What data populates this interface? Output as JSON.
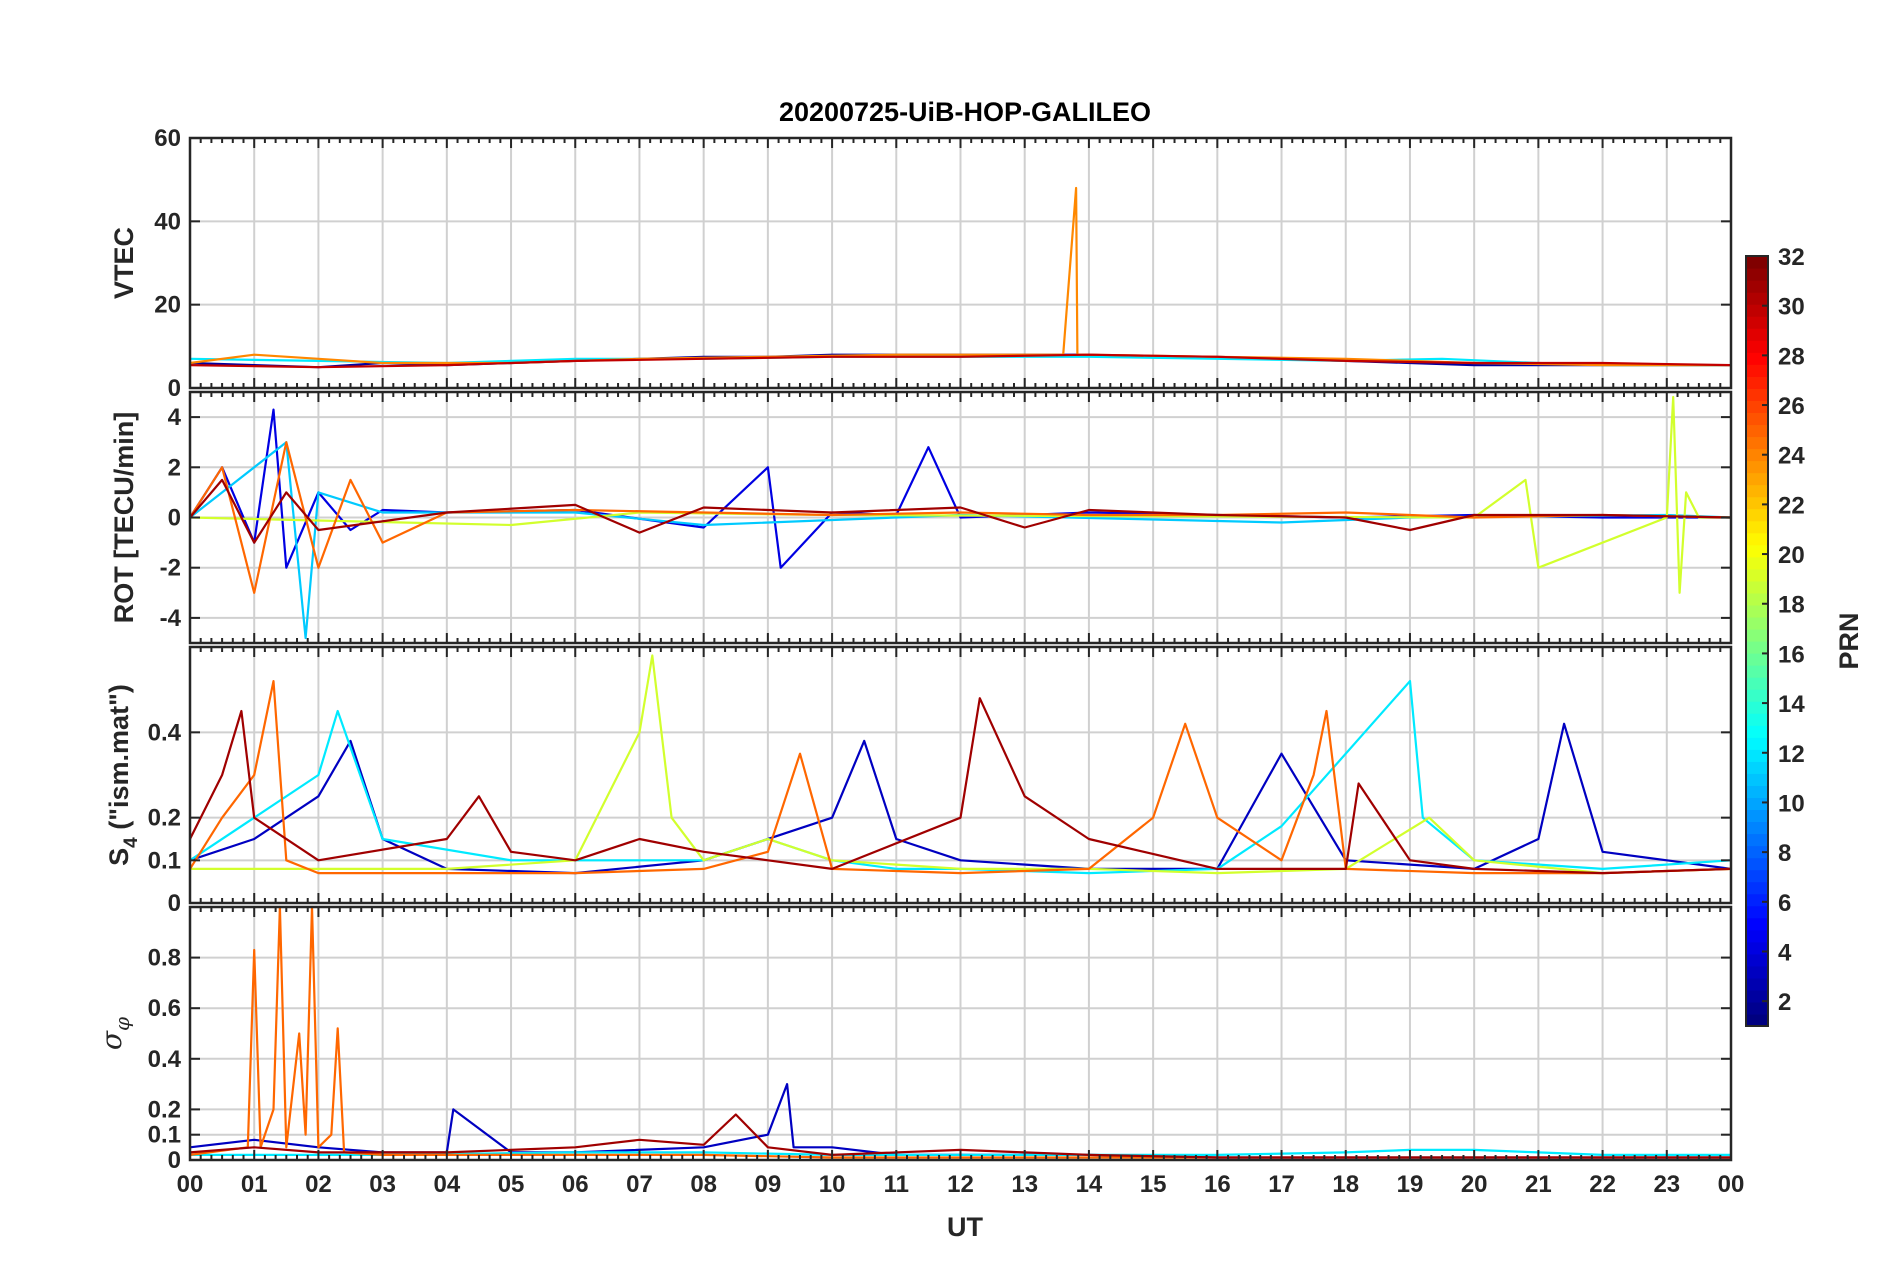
{
  "chart_data": {
    "type": "line",
    "title": "20200725-UiB-HOP-GALILEO",
    "xlabel": "UT",
    "x_ticks": [
      "00",
      "01",
      "02",
      "03",
      "04",
      "05",
      "06",
      "07",
      "08",
      "09",
      "10",
      "11",
      "12",
      "13",
      "14",
      "15",
      "16",
      "17",
      "18",
      "19",
      "20",
      "21",
      "22",
      "23",
      "00"
    ],
    "xlim": [
      0,
      24
    ],
    "grid": true,
    "colorbar": {
      "label": "PRN",
      "colormap": "jet",
      "range": [
        1,
        32
      ],
      "ticks": [
        2,
        4,
        6,
        8,
        10,
        12,
        14,
        16,
        18,
        20,
        22,
        24,
        26,
        28,
        30,
        32
      ]
    },
    "panels": [
      {
        "id": "vtec",
        "ylabel": "VTEC",
        "ylim": [
          0,
          60
        ],
        "yticks": [
          0,
          20,
          40,
          60
        ],
        "series": [
          {
            "prn": 2,
            "x": [
              0,
              1,
              2,
              3,
              4,
              5,
              6,
              7,
              8,
              9,
              10,
              11,
              12,
              13,
              14,
              15,
              16,
              17,
              18,
              19,
              20,
              21,
              22,
              23,
              24
            ],
            "y": [
              6,
              5.5,
              5,
              6,
              5.5,
              6,
              6.5,
              7,
              7.5,
              7.5,
              8,
              8,
              8,
              8,
              8,
              7.5,
              7.5,
              7,
              6.5,
              6,
              5.5,
              5.5,
              5.5,
              5.5,
              5.5
            ]
          },
          {
            "prn": 12,
            "x": [
              0,
              2,
              4,
              6,
              8,
              10,
              12,
              14,
              16,
              18,
              19.5,
              21,
              22,
              24
            ],
            "y": [
              7,
              6.5,
              6,
              7,
              7,
              7.5,
              7.5,
              7.5,
              7,
              6.5,
              7,
              6,
              5.5,
              5.5
            ]
          },
          {
            "prn": 24,
            "x": [
              0,
              1,
              2,
              3,
              5,
              7,
              9,
              11,
              13,
              13.6,
              13.8,
              13.82,
              14,
              16,
              18,
              20,
              22,
              24
            ],
            "y": [
              6,
              8,
              7,
              6,
              6,
              7,
              7.5,
              8,
              8,
              8,
              48,
              8,
              8,
              7.5,
              7,
              6,
              5.5,
              5.5
            ]
          },
          {
            "prn": 30,
            "x": [
              0,
              2,
              4,
              6,
              8,
              10,
              12,
              14,
              16,
              18,
              20,
              22,
              24
            ],
            "y": [
              5.5,
              5,
              5.5,
              6.5,
              7,
              7.5,
              7.5,
              8,
              7.5,
              6.5,
              6,
              6,
              5.5
            ]
          }
        ]
      },
      {
        "id": "rot",
        "ylabel": "ROT [TECU/min]",
        "ylim": [
          -5,
          5
        ],
        "yticks": [
          -4,
          -2,
          0,
          2,
          4
        ],
        "series": [
          {
            "prn": 4,
            "x": [
              0,
              0.5,
              1,
              1.3,
              1.5,
              2,
              2.5,
              3,
              4,
              6,
              8,
              9,
              9.2,
              10,
              11,
              11.5,
              12,
              14,
              16,
              18,
              20,
              22,
              24
            ],
            "y": [
              0,
              2,
              -1,
              4.3,
              -2,
              1,
              -0.5,
              0.3,
              0.2,
              0.3,
              -0.4,
              2,
              -2,
              0.2,
              0.1,
              2.8,
              0,
              0.2,
              0.1,
              0,
              0.1,
              0,
              0
            ]
          },
          {
            "prn": 11,
            "x": [
              0,
              1.5,
              1.8,
              2,
              3,
              6,
              8,
              12,
              17,
              19,
              23,
              24
            ],
            "y": [
              0,
              3,
              -4.8,
              1,
              0.2,
              0.2,
              -0.3,
              0.1,
              -0.2,
              0,
              0.1,
              0
            ]
          },
          {
            "prn": 19,
            "x": [
              0,
              5,
              7,
              10,
              20,
              20.8,
              21,
              23,
              23.1,
              23.2,
              23.3,
              23.5,
              24
            ],
            "y": [
              0,
              -0.3,
              0.2,
              0.1,
              0,
              1.5,
              -2,
              0,
              4.8,
              -3,
              1,
              0,
              0
            ]
          },
          {
            "prn": 25,
            "x": [
              0,
              0.5,
              1,
              1.5,
              2,
              2.5,
              3,
              4,
              6,
              8,
              10,
              12,
              14,
              16,
              18,
              20,
              22,
              24
            ],
            "y": [
              0,
              2,
              -3,
              3,
              -2,
              1.5,
              -1,
              0.2,
              0.3,
              0.2,
              0.1,
              0.2,
              0.1,
              0.1,
              0.2,
              0,
              0.1,
              0
            ]
          },
          {
            "prn": 31,
            "x": [
              0,
              0.5,
              1,
              1.5,
              2,
              4,
              6,
              7,
              8,
              10,
              12,
              13,
              14,
              16,
              18,
              19,
              20,
              22,
              24
            ],
            "y": [
              0,
              1.5,
              -1,
              1,
              -0.5,
              0.2,
              0.5,
              -0.6,
              0.4,
              0.2,
              0.4,
              -0.4,
              0.3,
              0.1,
              0,
              -0.5,
              0.1,
              0.1,
              0
            ]
          }
        ]
      },
      {
        "id": "s4",
        "ylabel": "S4 (\"ism.mat\")",
        "ylabel_main": "S",
        "ylabel_sub": "4",
        "ylabel_rest": " (\"ism.mat\")",
        "ylim": [
          0,
          0.6
        ],
        "yticks": [
          0,
          0.1,
          0.2,
          0.4
        ],
        "series": [
          {
            "prn": 3,
            "x": [
              0,
              1,
              2,
              2.5,
              3,
              4,
              6,
              8,
              10,
              10.5,
              11,
              12,
              14,
              16,
              17,
              18,
              20,
              21,
              21.4,
              22,
              23,
              24
            ],
            "y": [
              0.1,
              0.15,
              0.25,
              0.38,
              0.15,
              0.08,
              0.07,
              0.1,
              0.2,
              0.38,
              0.15,
              0.1,
              0.08,
              0.08,
              0.35,
              0.1,
              0.08,
              0.15,
              0.42,
              0.12,
              0.1,
              0.08
            ]
          },
          {
            "prn": 12,
            "x": [
              0,
              2,
              2.3,
              3,
              5,
              6,
              8,
              9,
              10,
              11,
              12,
              14,
              16,
              17,
              19,
              19.2,
              20,
              22,
              24
            ],
            "y": [
              0.1,
              0.3,
              0.45,
              0.15,
              0.1,
              0.1,
              0.1,
              0.15,
              0.1,
              0.08,
              0.08,
              0.07,
              0.08,
              0.18,
              0.52,
              0.2,
              0.1,
              0.08,
              0.1
            ]
          },
          {
            "prn": 19,
            "x": [
              0,
              4,
              6,
              6.5,
              7,
              7.2,
              7.5,
              8,
              9,
              10,
              12,
              14,
              16,
              18,
              19.3,
              20,
              22,
              24
            ],
            "y": [
              0.08,
              0.08,
              0.1,
              0.25,
              0.4,
              0.58,
              0.2,
              0.1,
              0.15,
              0.1,
              0.08,
              0.08,
              0.07,
              0.08,
              0.2,
              0.1,
              0.07,
              0.08
            ]
          },
          {
            "prn": 25,
            "x": [
              0,
              0.5,
              1,
              1.3,
              1.5,
              2,
              4,
              6,
              8,
              9,
              9.5,
              10,
              12,
              14,
              15,
              15.5,
              16,
              17,
              17.5,
              17.7,
              18,
              20,
              22,
              24
            ],
            "y": [
              0.08,
              0.2,
              0.3,
              0.52,
              0.1,
              0.07,
              0.07,
              0.07,
              0.08,
              0.12,
              0.35,
              0.08,
              0.07,
              0.08,
              0.2,
              0.42,
              0.2,
              0.1,
              0.3,
              0.45,
              0.08,
              0.07,
              0.07,
              0.08
            ]
          },
          {
            "prn": 31,
            "x": [
              0,
              0.5,
              0.8,
              1,
              2,
              4,
              4.5,
              5,
              6,
              7,
              8,
              9,
              10,
              12,
              12.3,
              13,
              14,
              16,
              18,
              18.2,
              19,
              20,
              22,
              24
            ],
            "y": [
              0.15,
              0.3,
              0.45,
              0.2,
              0.1,
              0.15,
              0.25,
              0.12,
              0.1,
              0.15,
              0.12,
              0.1,
              0.08,
              0.2,
              0.48,
              0.25,
              0.15,
              0.08,
              0.08,
              0.28,
              0.1,
              0.08,
              0.07,
              0.08
            ]
          }
        ]
      },
      {
        "id": "sigma",
        "ylabel": "σφ",
        "ylabel_main": "σ",
        "ylabel_sub": "φ",
        "ylim": [
          0,
          1
        ],
        "yticks": [
          0,
          0.1,
          0.2,
          0.4,
          0.6,
          0.8
        ],
        "series": [
          {
            "prn": 3,
            "x": [
              0,
              1,
              2,
              3,
              4,
              4.1,
              5,
              6,
              8,
              9,
              9.3,
              9.4,
              10,
              11,
              12,
              14,
              16,
              18,
              20,
              22,
              24
            ],
            "y": [
              0.05,
              0.08,
              0.05,
              0.03,
              0.03,
              0.2,
              0.03,
              0.03,
              0.05,
              0.1,
              0.3,
              0.05,
              0.05,
              0.02,
              0.02,
              0.02,
              0.01,
              0.01,
              0.01,
              0.01,
              0.01
            ]
          },
          {
            "prn": 12,
            "x": [
              0,
              3,
              6,
              8,
              10,
              12,
              14,
              16,
              18,
              19,
              20,
              21,
              22,
              24
            ],
            "y": [
              0.02,
              0.02,
              0.03,
              0.03,
              0.02,
              0.02,
              0.02,
              0.02,
              0.03,
              0.04,
              0.04,
              0.03,
              0.02,
              0.02
            ]
          },
          {
            "prn": 25,
            "x": [
              0,
              0.9,
              1.0,
              1.1,
              1.3,
              1.4,
              1.5,
              1.7,
              1.8,
              1.9,
              2.0,
              2.2,
              2.3,
              2.4,
              3,
              4,
              5,
              6,
              8,
              10,
              12,
              14,
              16,
              18,
              20,
              22,
              24
            ],
            "y": [
              0.02,
              0.05,
              0.83,
              0.05,
              0.2,
              1.0,
              0.05,
              0.5,
              0.1,
              1.0,
              0.05,
              0.1,
              0.52,
              0.03,
              0.02,
              0.02,
              0.02,
              0.02,
              0.02,
              0.01,
              0.01,
              0.01,
              0.01,
              0.01,
              0.01,
              0.01,
              0.01
            ]
          },
          {
            "prn": 31,
            "x": [
              0,
              1,
              2,
              4,
              6,
              7,
              8,
              8.5,
              9,
              10,
              12,
              13,
              14,
              16,
              18,
              20,
              22,
              24
            ],
            "y": [
              0.03,
              0.05,
              0.03,
              0.03,
              0.05,
              0.08,
              0.06,
              0.18,
              0.05,
              0.02,
              0.04,
              0.03,
              0.02,
              0.01,
              0.01,
              0.01,
              0.01,
              0.01
            ]
          }
        ]
      }
    ]
  }
}
